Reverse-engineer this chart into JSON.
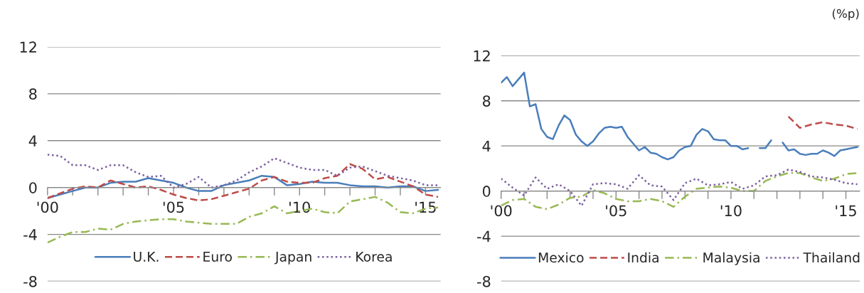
{
  "chart_data": [
    {
      "type": "line",
      "x": [
        2000,
        2000.5,
        2001,
        2001.5,
        2002,
        2002.5,
        2003,
        2003.5,
        2004,
        2004.5,
        2005,
        2005.5,
        2006,
        2006.5,
        2007,
        2007.5,
        2008,
        2008.5,
        2009,
        2009.5,
        2010,
        2010.5,
        2011,
        2011.5,
        2012,
        2012.5,
        2013,
        2013.5,
        2014,
        2014.5,
        2015,
        2015.5
      ],
      "xlim": [
        2000,
        2015.6
      ],
      "xticks": [
        {
          "value": 2000,
          "label": "'00"
        },
        {
          "value": 2001,
          "label": null
        },
        {
          "value": 2002,
          "label": null
        },
        {
          "value": 2003,
          "label": null
        },
        {
          "value": 2004,
          "label": null
        },
        {
          "value": 2005,
          "label": "'05"
        },
        {
          "value": 2006,
          "label": null
        },
        {
          "value": 2007,
          "label": null
        },
        {
          "value": 2008,
          "label": null
        },
        {
          "value": 2009,
          "label": null
        },
        {
          "value": 2010,
          "label": "'10"
        },
        {
          "value": 2011,
          "label": null
        },
        {
          "value": 2012,
          "label": null
        },
        {
          "value": 2013,
          "label": null
        },
        {
          "value": 2014,
          "label": null
        },
        {
          "value": 2015,
          "label": "'15"
        }
      ],
      "ylim": [
        -8,
        12
      ],
      "yticks": [
        -8,
        -4,
        0,
        4,
        8,
        12
      ],
      "grid": "y",
      "legend": "bottom",
      "series": [
        {
          "name": "U.K.",
          "color": "#4a7ebb",
          "line_style": "solid",
          "values": [
            -0.9,
            -0.6,
            -0.3,
            0.0,
            0.0,
            0.4,
            0.5,
            0.5,
            0.8,
            0.6,
            0.4,
            0.0,
            -0.3,
            -0.3,
            0.2,
            0.4,
            0.6,
            1.0,
            0.9,
            0.2,
            0.3,
            0.5,
            0.4,
            0.4,
            0.2,
            0.1,
            0.1,
            0.0,
            0.1,
            0.1,
            -0.3,
            -0.2
          ]
        },
        {
          "name": "Euro",
          "color": "#be4b48",
          "line_style": "dashed",
          "values": [
            -0.9,
            -0.5,
            -0.1,
            0.1,
            0.0,
            0.6,
            0.3,
            0.0,
            0.1,
            -0.2,
            -0.6,
            -0.9,
            -1.1,
            -1.0,
            -0.7,
            -0.4,
            -0.1,
            0.6,
            0.9,
            0.5,
            0.4,
            0.4,
            0.8,
            1.0,
            2.0,
            1.6,
            0.7,
            0.9,
            0.5,
            0.1,
            -0.6,
            -0.8
          ]
        },
        {
          "name": "Japan",
          "color": "#98b954",
          "line_style": "dashdot",
          "values": [
            -4.7,
            -4.2,
            -3.8,
            -3.8,
            -3.5,
            -3.6,
            -3.1,
            -2.9,
            -2.8,
            -2.7,
            -2.7,
            -2.9,
            -3.0,
            -3.1,
            -3.1,
            -3.1,
            -2.5,
            -2.2,
            -1.6,
            -2.2,
            -2.0,
            -1.8,
            -2.1,
            -2.2,
            -1.2,
            -1.0,
            -0.8,
            -1.3,
            -2.1,
            -2.2,
            -1.8,
            -1.7
          ]
        },
        {
          "name": "Korea",
          "color": "#7d60a0",
          "line_style": "dotted",
          "values": [
            2.8,
            2.7,
            1.9,
            1.9,
            1.5,
            1.9,
            1.9,
            1.3,
            0.9,
            1.0,
            0.0,
            0.3,
            0.9,
            0.0,
            0.2,
            0.6,
            1.3,
            1.8,
            2.5,
            2.1,
            1.7,
            1.5,
            1.5,
            1.0,
            1.7,
            1.8,
            1.4,
            1.0,
            0.8,
            0.6,
            0.2,
            0.2
          ]
        }
      ]
    },
    {
      "type": "line",
      "x": [
        2000,
        2000.5,
        2001,
        2001.5,
        2002,
        2002.5,
        2003,
        2003.5,
        2004,
        2004.5,
        2005,
        2005.5,
        2006,
        2006.5,
        2007,
        2007.5,
        2008,
        2008.5,
        2009,
        2009.5,
        2010,
        2010.5,
        2011,
        2011.5,
        2012,
        2012.5,
        2013,
        2013.5,
        2014,
        2014.5,
        2015,
        2015.5
      ],
      "xlim": [
        2000,
        2015.6
      ],
      "xticks": [
        {
          "value": 2000,
          "label": "'00"
        },
        {
          "value": 2001,
          "label": null
        },
        {
          "value": 2002,
          "label": null
        },
        {
          "value": 2003,
          "label": null
        },
        {
          "value": 2004,
          "label": null
        },
        {
          "value": 2005,
          "label": "'05"
        },
        {
          "value": 2006,
          "label": null
        },
        {
          "value": 2007,
          "label": null
        },
        {
          "value": 2008,
          "label": null
        },
        {
          "value": 2009,
          "label": null
        },
        {
          "value": 2010,
          "label": "'10"
        },
        {
          "value": 2011,
          "label": null
        },
        {
          "value": 2012,
          "label": null
        },
        {
          "value": 2013,
          "label": null
        },
        {
          "value": 2014,
          "label": null
        },
        {
          "value": 2015,
          "label": "'15"
        }
      ],
      "ylim": [
        -8,
        12
      ],
      "yticks": [
        -8,
        -4,
        0,
        4,
        8,
        12
      ],
      "grid": "y",
      "legend": "bottom",
      "annotations": [
        "(%p)"
      ],
      "series": [
        {
          "name": "Mexico",
          "color": "#4a7ebb",
          "line_style": "solid",
          "x": [
            2000,
            2000.25,
            2000.5,
            2000.75,
            2001,
            2001.25,
            2001.5,
            2001.75,
            2002,
            2002.25,
            2002.5,
            2002.75,
            2003,
            2003.25,
            2003.5,
            2003.75,
            2004,
            2004.25,
            2004.5,
            2004.75,
            2005,
            2005.25,
            2005.5,
            2005.75,
            2006,
            2006.25,
            2006.5,
            2006.75,
            2007,
            2007.25,
            2007.5,
            2007.75,
            2008,
            2008.25,
            2008.5,
            2008.75,
            2009,
            2009.25,
            2009.5,
            2009.75,
            2010,
            2010.25,
            2010.5,
            2010.75,
            2011,
            2011.25,
            2011.5,
            2011.75,
            2012,
            2012.25,
            2012.5,
            2012.75,
            2013,
            2013.25,
            2013.5,
            2013.75,
            2014,
            2014.25,
            2014.5,
            2014.75,
            2015,
            2015.25,
            2015.5
          ],
          "values": [
            9.6,
            10.1,
            9.3,
            9.9,
            10.5,
            7.5,
            7.7,
            5.5,
            4.8,
            4.6,
            5.8,
            6.7,
            6.3,
            5.0,
            4.4,
            4.0,
            4.4,
            5.1,
            5.6,
            5.7,
            5.6,
            5.7,
            4.8,
            4.2,
            3.6,
            3.9,
            3.4,
            3.3,
            3.0,
            2.8,
            3.0,
            3.6,
            3.9,
            4.0,
            5.0,
            5.5,
            5.3,
            4.6,
            4.5,
            4.5,
            4.0,
            4.0,
            3.7,
            3.8,
            null,
            3.8,
            3.8,
            4.5,
            null,
            4.3,
            3.6,
            3.7,
            3.3,
            3.2,
            3.3,
            3.3,
            3.6,
            3.4,
            3.1,
            3.6,
            3.7,
            3.8,
            3.9
          ]
        },
        {
          "name": "India",
          "color": "#be4b48",
          "line_style": "dashed",
          "values": [
            null,
            null,
            null,
            null,
            null,
            null,
            null,
            null,
            null,
            null,
            null,
            null,
            null,
            null,
            null,
            null,
            null,
            null,
            null,
            null,
            null,
            null,
            null,
            null,
            null,
            6.6,
            5.6,
            5.9,
            6.1,
            5.9,
            5.8,
            5.5
          ]
        },
        {
          "name": "Malaysia",
          "color": "#98b954",
          "line_style": "dashdot",
          "values": [
            -1.3,
            -0.8,
            -0.7,
            -1.4,
            -1.6,
            -1.2,
            -0.6,
            -0.5,
            0.1,
            -0.2,
            -0.7,
            -0.9,
            -0.9,
            -0.7,
            -0.9,
            -1.4,
            -0.5,
            0.2,
            0.3,
            0.4,
            0.3,
            0.0,
            0.0,
            0.9,
            1.3,
            1.6,
            1.6,
            1.2,
            0.9,
            1.1,
            1.5,
            1.6
          ]
        },
        {
          "name": "Thailand",
          "color": "#7d60a0",
          "line_style": "dotted",
          "values": [
            1.1,
            0.3,
            -0.4,
            1.2,
            0.2,
            0.6,
            0.0,
            -1.3,
            0.6,
            0.7,
            0.6,
            0.2,
            1.4,
            0.5,
            0.4,
            -0.8,
            0.7,
            1.1,
            0.5,
            0.6,
            0.8,
            0.2,
            0.5,
            1.3,
            1.4,
            1.9,
            1.7,
            1.3,
            1.2,
            1.0,
            0.7,
            0.6
          ]
        }
      ]
    }
  ]
}
